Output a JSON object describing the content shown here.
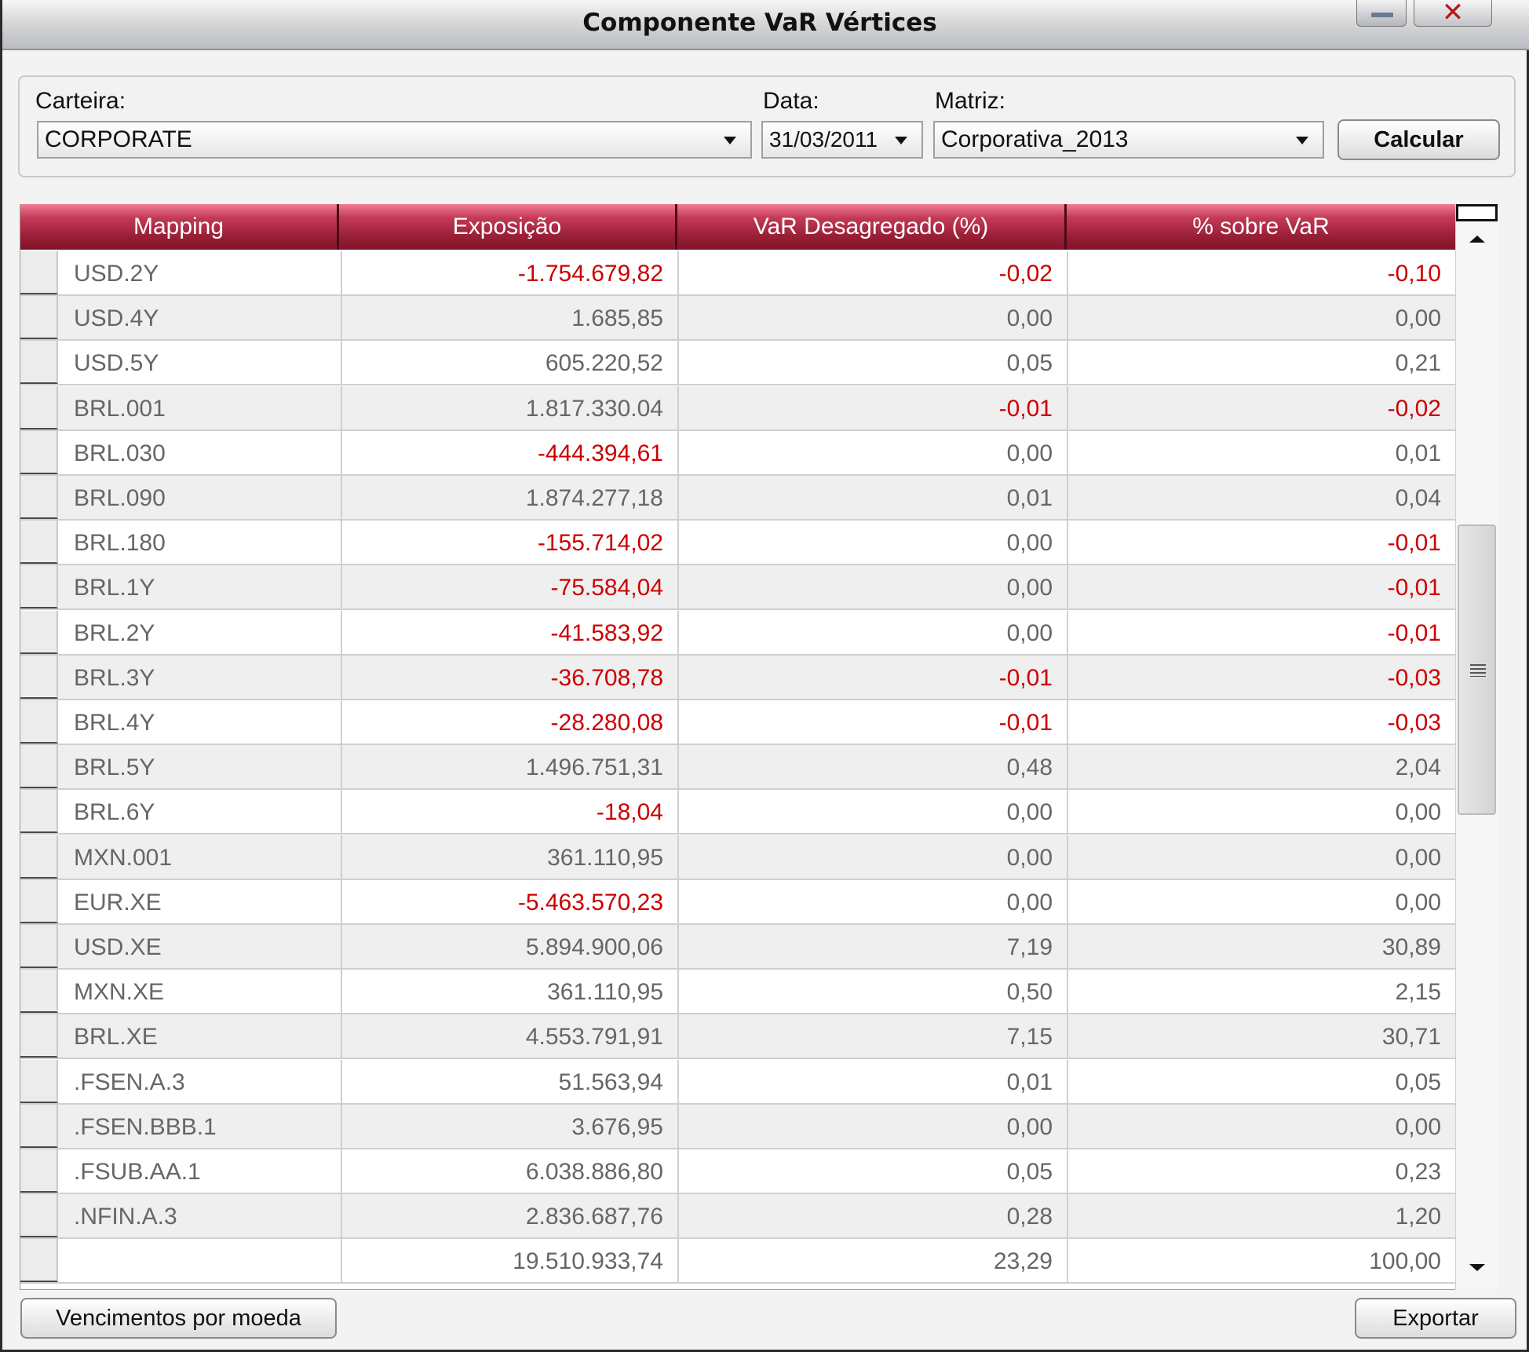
{
  "window": {
    "title": "Componente VaR Vértices"
  },
  "filters": {
    "carteira_label": "Carteira:",
    "carteira_value": "CORPORATE",
    "data_label": "Data:",
    "data_value": "31/03/2011",
    "matriz_label": "Matriz:",
    "matriz_value": "Corporativa_2013",
    "calcular_label": "Calcular"
  },
  "grid": {
    "headers": [
      "Mapping",
      "Exposição",
      "VaR Desagregado (%)",
      "% sobre VaR"
    ],
    "colors": {
      "header": "#9a1f37",
      "negative": "#cc0000",
      "text": "#666666"
    },
    "rows": [
      {
        "mapping": "USD.2Y",
        "exposicao": "-1.754.679,82",
        "var": "-0,02",
        "pct": "-0,10"
      },
      {
        "mapping": "USD.4Y",
        "exposicao": "1.685,85",
        "var": "0,00",
        "pct": "0,00"
      },
      {
        "mapping": "USD.5Y",
        "exposicao": "605.220,52",
        "var": "0,05",
        "pct": "0,21"
      },
      {
        "mapping": "BRL.001",
        "exposicao": "1.817.330.04",
        "var": "-0,01",
        "pct": "-0,02"
      },
      {
        "mapping": "BRL.030",
        "exposicao": "-444.394,61",
        "var": "0,00",
        "pct": "0,01"
      },
      {
        "mapping": "BRL.090",
        "exposicao": "1.874.277,18",
        "var": "0,01",
        "pct": "0,04"
      },
      {
        "mapping": "BRL.180",
        "exposicao": "-155.714,02",
        "var": "0,00",
        "pct": "-0,01"
      },
      {
        "mapping": "BRL.1Y",
        "exposicao": "-75.584,04",
        "var": "0,00",
        "pct": "-0,01"
      },
      {
        "mapping": "BRL.2Y",
        "exposicao": "-41.583,92",
        "var": "0,00",
        "pct": "-0,01"
      },
      {
        "mapping": "BRL.3Y",
        "exposicao": "-36.708,78",
        "var": "-0,01",
        "pct": "-0,03"
      },
      {
        "mapping": "BRL.4Y",
        "exposicao": "-28.280,08",
        "var": "-0,01",
        "pct": "-0,03"
      },
      {
        "mapping": "BRL.5Y",
        "exposicao": "1.496.751,31",
        "var": "0,48",
        "pct": "2,04"
      },
      {
        "mapping": "BRL.6Y",
        "exposicao": "-18,04",
        "var": "0,00",
        "pct": "0,00"
      },
      {
        "mapping": "MXN.001",
        "exposicao": "361.110,95",
        "var": "0,00",
        "pct": "0,00"
      },
      {
        "mapping": "EUR.XE",
        "exposicao": "-5.463.570,23",
        "var": "0,00",
        "pct": "0,00"
      },
      {
        "mapping": "USD.XE",
        "exposicao": "5.894.900,06",
        "var": "7,19",
        "pct": "30,89"
      },
      {
        "mapping": "MXN.XE",
        "exposicao": "361.110,95",
        "var": "0,50",
        "pct": "2,15"
      },
      {
        "mapping": "BRL.XE",
        "exposicao": "4.553.791,91",
        "var": "7,15",
        "pct": "30,71"
      },
      {
        "mapping": ".FSEN.A.3",
        "exposicao": "51.563,94",
        "var": "0,01",
        "pct": "0,05"
      },
      {
        "mapping": ".FSEN.BBB.1",
        "exposicao": "3.676,95",
        "var": "0,00",
        "pct": "0,00"
      },
      {
        "mapping": ".FSUB.AA.1",
        "exposicao": "6.038.886,80",
        "var": "0,05",
        "pct": "0,23"
      },
      {
        "mapping": ".NFIN.A.3",
        "exposicao": "2.836.687,76",
        "var": "0,28",
        "pct": "1,20"
      },
      {
        "mapping": "",
        "exposicao": "19.510.933,74",
        "var": "23,29",
        "pct": "100,00"
      }
    ]
  },
  "footer": {
    "vencimentos_label": "Vencimentos por moeda",
    "exportar_label": "Exportar"
  },
  "icons": {
    "minimize": "minimize-icon",
    "close": "close-icon",
    "dropdown": "chevron-down-icon",
    "scroll_up": "arrow-up-icon",
    "scroll_down": "arrow-down-icon",
    "grip": "grip-icon"
  }
}
